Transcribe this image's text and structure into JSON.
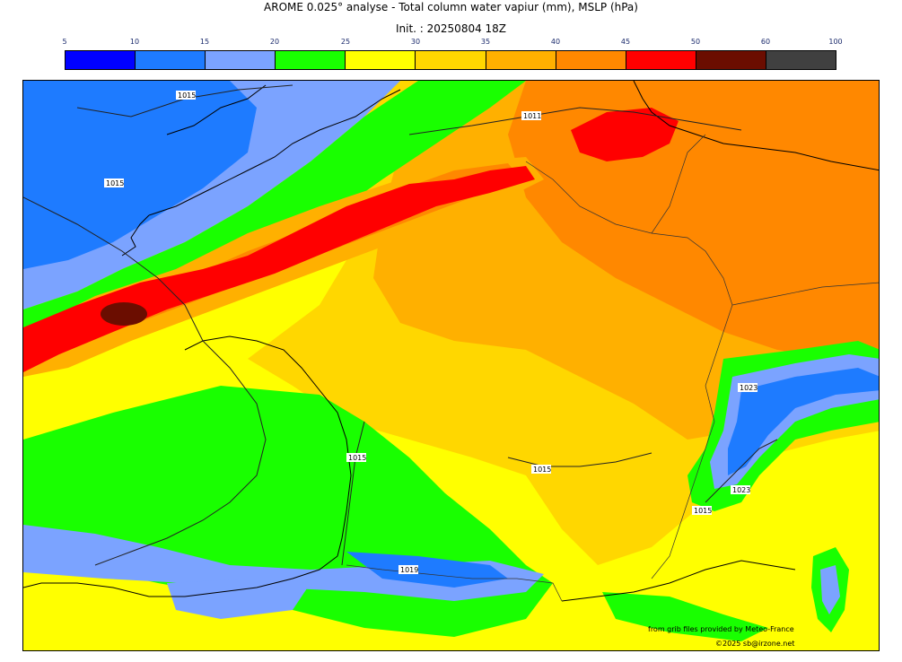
{
  "title_line1": "AROME 0.025° analyse - Total column water vapiur (mm), MSLP (hPa)",
  "title_line2": "Init. : 20250804 18Z",
  "colorbar": {
    "ticks": [
      "5",
      "10",
      "15",
      "20",
      "25",
      "30",
      "35",
      "40",
      "45",
      "50",
      "60",
      "100"
    ],
    "colors": [
      "#0000ff",
      "#1e7bff",
      "#7ba3ff",
      "#19ff00",
      "#ffff00",
      "#ffd700",
      "#ffb000",
      "#ff8800",
      "#ff0000",
      "#6b0d00",
      "#404040"
    ]
  },
  "isobar_labels": [
    "1015",
    "1011",
    "1015",
    "1015",
    "1015",
    "1023",
    "1023",
    "1015",
    "1019"
  ],
  "credits": {
    "line1": "from grib files provided by Meteo-France",
    "line2": "©2025 sb@irzone.net"
  }
}
